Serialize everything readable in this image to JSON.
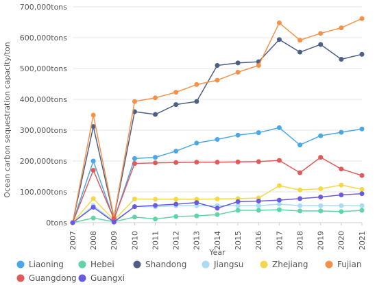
{
  "chart_data": {
    "type": "line",
    "title": "",
    "xlabel": "Year",
    "ylabel": "Ocean carbon sequestration capacity/ton",
    "ylim": [
      0,
      700000
    ],
    "y_ticks": [
      "0tons",
      "100,000tons",
      "200,000tons",
      "300,000tons",
      "400,000tons",
      "500,000tons",
      "600,000tons",
      "700,000tons"
    ],
    "grid": "horizontal",
    "legend_position": "bottom",
    "categories": [
      "2007",
      "2008",
      "2009",
      "2010",
      "2011",
      "2012",
      "2013",
      "2014",
      "2015",
      "2016",
      "2017",
      "2018",
      "2019",
      "2020",
      "2021"
    ],
    "series": [
      {
        "name": "Liaoning",
        "color": "#4aa8e8",
        "values": [
          0,
          200000,
          10000,
          208000,
          212000,
          232000,
          258000,
          270000,
          284000,
          292000,
          308000,
          252000,
          282000,
          293000,
          304000
        ]
      },
      {
        "name": "Hebei",
        "color": "#5fd4a8",
        "values": [
          0,
          15000,
          3000,
          18000,
          12000,
          20000,
          22000,
          26000,
          40000,
          40000,
          42000,
          38000,
          38000,
          36000,
          40000
        ]
      },
      {
        "name": "Shandong",
        "color": "#4e5f86",
        "values": [
          0,
          312000,
          15000,
          360000,
          351000,
          383000,
          393000,
          510000,
          518000,
          522000,
          594000,
          553000,
          578000,
          530000,
          546000
        ]
      },
      {
        "name": "Jiangsu",
        "color": "#a8dcf5",
        "values": [
          0,
          55000,
          5000,
          52000,
          52000,
          55000,
          55000,
          55000,
          55000,
          55000,
          60000,
          55000,
          55000,
          55000,
          55000
        ]
      },
      {
        "name": "Zhejiang",
        "color": "#f5d84a",
        "values": [
          0,
          78000,
          8000,
          77000,
          76000,
          76000,
          76000,
          77000,
          78000,
          80000,
          120000,
          106000,
          110000,
          122000,
          108000
        ]
      },
      {
        "name": "Fujian",
        "color": "#f5924a",
        "values": [
          0,
          349000,
          18000,
          393000,
          405000,
          423000,
          448000,
          462000,
          488000,
          510000,
          648000,
          592000,
          614000,
          632000,
          662000
        ]
      },
      {
        "name": "Guangdong",
        "color": "#e05a5a",
        "values": [
          0,
          170000,
          12000,
          192000,
          194000,
          195000,
          196000,
          196000,
          197000,
          198000,
          202000,
          162000,
          212000,
          174000,
          153000
        ]
      },
      {
        "name": "Guangxi",
        "color": "#6a5ae0",
        "values": [
          0,
          50000,
          2000,
          52000,
          56000,
          60000,
          65000,
          47000,
          68000,
          70000,
          73000,
          78000,
          83000,
          90000,
          94000
        ]
      }
    ]
  }
}
